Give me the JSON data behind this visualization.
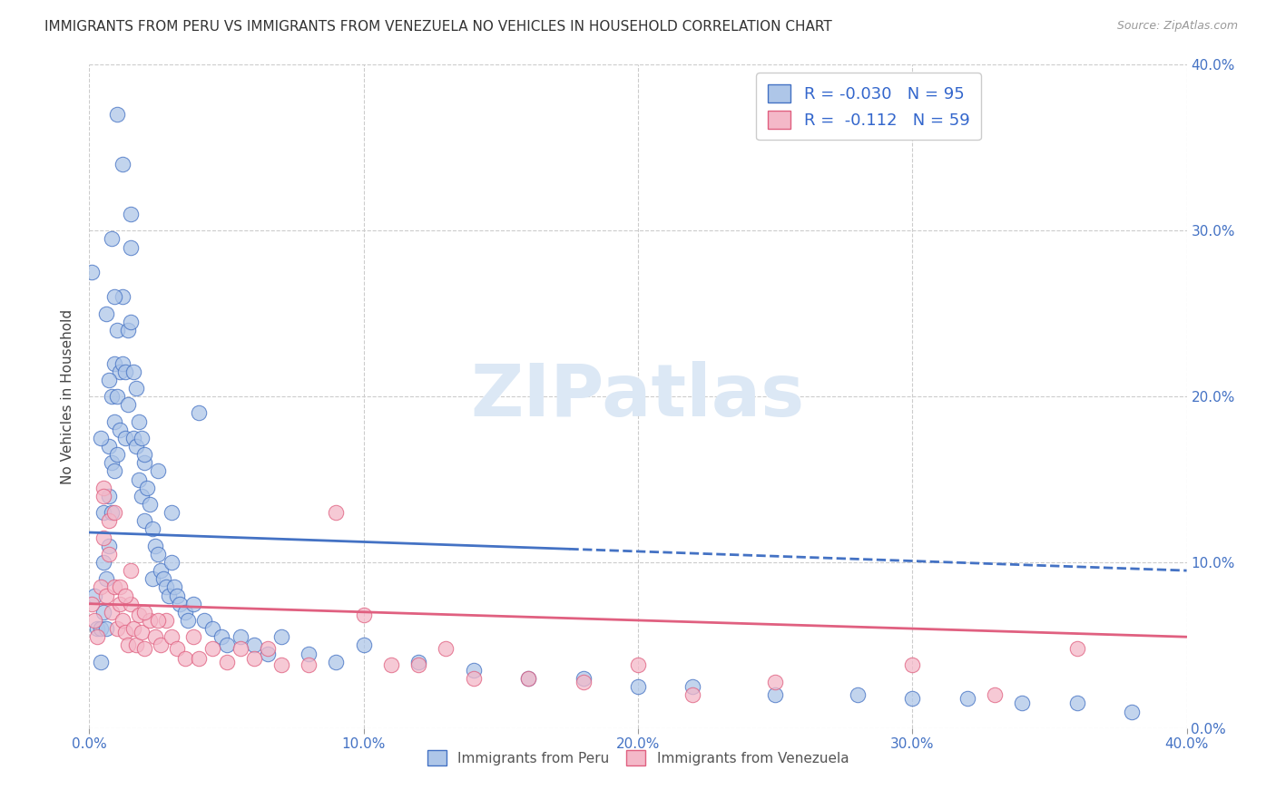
{
  "title": "IMMIGRANTS FROM PERU VS IMMIGRANTS FROM VENEZUELA NO VEHICLES IN HOUSEHOLD CORRELATION CHART",
  "source": "Source: ZipAtlas.com",
  "ylabel": "No Vehicles in Household",
  "legend_peru": "Immigrants from Peru",
  "legend_venezuela": "Immigrants from Venezuela",
  "R_peru": -0.03,
  "N_peru": 95,
  "R_venezuela": -0.112,
  "N_venezuela": 59,
  "xlim": [
    0.0,
    0.4
  ],
  "ylim": [
    0.0,
    0.4
  ],
  "color_peru_fill": "#aec6e8",
  "color_peru_edge": "#4472c4",
  "color_ven_fill": "#f4b8c8",
  "color_ven_edge": "#e06080",
  "color_peru_line": "#4472c4",
  "color_ven_line": "#e06080",
  "watermark": "ZIPatlas",
  "watermark_color": "#dce8f5",
  "peru_x": [
    0.001,
    0.002,
    0.003,
    0.004,
    0.004,
    0.005,
    0.005,
    0.005,
    0.006,
    0.006,
    0.007,
    0.007,
    0.007,
    0.008,
    0.008,
    0.008,
    0.009,
    0.009,
    0.009,
    0.01,
    0.01,
    0.01,
    0.011,
    0.011,
    0.012,
    0.012,
    0.013,
    0.013,
    0.014,
    0.014,
    0.015,
    0.015,
    0.016,
    0.016,
    0.017,
    0.017,
    0.018,
    0.018,
    0.019,
    0.019,
    0.02,
    0.02,
    0.021,
    0.022,
    0.023,
    0.023,
    0.024,
    0.025,
    0.026,
    0.027,
    0.028,
    0.029,
    0.03,
    0.031,
    0.032,
    0.033,
    0.035,
    0.036,
    0.038,
    0.04,
    0.042,
    0.045,
    0.048,
    0.05,
    0.055,
    0.06,
    0.065,
    0.07,
    0.08,
    0.09,
    0.1,
    0.12,
    0.14,
    0.16,
    0.18,
    0.2,
    0.22,
    0.25,
    0.28,
    0.3,
    0.32,
    0.34,
    0.36,
    0.38,
    0.02,
    0.025,
    0.03,
    0.01,
    0.012,
    0.015,
    0.008,
    0.009,
    0.006,
    0.007,
    0.004
  ],
  "peru_y": [
    0.275,
    0.08,
    0.06,
    0.06,
    0.04,
    0.13,
    0.1,
    0.07,
    0.09,
    0.06,
    0.17,
    0.14,
    0.11,
    0.2,
    0.16,
    0.13,
    0.22,
    0.185,
    0.155,
    0.24,
    0.2,
    0.165,
    0.215,
    0.18,
    0.26,
    0.22,
    0.215,
    0.175,
    0.24,
    0.195,
    0.29,
    0.245,
    0.215,
    0.175,
    0.205,
    0.17,
    0.185,
    0.15,
    0.175,
    0.14,
    0.16,
    0.125,
    0.145,
    0.135,
    0.12,
    0.09,
    0.11,
    0.105,
    0.095,
    0.09,
    0.085,
    0.08,
    0.1,
    0.085,
    0.08,
    0.075,
    0.07,
    0.065,
    0.075,
    0.19,
    0.065,
    0.06,
    0.055,
    0.05,
    0.055,
    0.05,
    0.045,
    0.055,
    0.045,
    0.04,
    0.05,
    0.04,
    0.035,
    0.03,
    0.03,
    0.025,
    0.025,
    0.02,
    0.02,
    0.018,
    0.018,
    0.015,
    0.015,
    0.01,
    0.165,
    0.155,
    0.13,
    0.37,
    0.34,
    0.31,
    0.295,
    0.26,
    0.25,
    0.21,
    0.175
  ],
  "ven_x": [
    0.001,
    0.002,
    0.003,
    0.004,
    0.005,
    0.005,
    0.006,
    0.007,
    0.008,
    0.009,
    0.01,
    0.011,
    0.012,
    0.013,
    0.014,
    0.015,
    0.016,
    0.017,
    0.018,
    0.019,
    0.02,
    0.022,
    0.024,
    0.026,
    0.028,
    0.03,
    0.032,
    0.035,
    0.038,
    0.04,
    0.045,
    0.05,
    0.055,
    0.06,
    0.065,
    0.07,
    0.08,
    0.09,
    0.1,
    0.11,
    0.12,
    0.13,
    0.14,
    0.16,
    0.18,
    0.2,
    0.22,
    0.25,
    0.3,
    0.33,
    0.36,
    0.005,
    0.007,
    0.009,
    0.011,
    0.013,
    0.015,
    0.02,
    0.025
  ],
  "ven_y": [
    0.075,
    0.065,
    0.055,
    0.085,
    0.145,
    0.115,
    0.08,
    0.105,
    0.07,
    0.085,
    0.06,
    0.075,
    0.065,
    0.058,
    0.05,
    0.075,
    0.06,
    0.05,
    0.068,
    0.058,
    0.048,
    0.065,
    0.055,
    0.05,
    0.065,
    0.055,
    0.048,
    0.042,
    0.055,
    0.042,
    0.048,
    0.04,
    0.048,
    0.042,
    0.048,
    0.038,
    0.038,
    0.13,
    0.068,
    0.038,
    0.038,
    0.048,
    0.03,
    0.03,
    0.028,
    0.038,
    0.02,
    0.028,
    0.038,
    0.02,
    0.048,
    0.14,
    0.125,
    0.13,
    0.085,
    0.08,
    0.095,
    0.07,
    0.065
  ],
  "peru_line_x0": 0.0,
  "peru_line_x1": 0.175,
  "peru_line_x2": 0.4,
  "peru_line_y0": 0.118,
  "peru_line_y1": 0.108,
  "peru_line_y2": 0.095,
  "ven_line_x0": 0.0,
  "ven_line_x1": 0.4,
  "ven_line_y0": 0.075,
  "ven_line_y1": 0.055
}
